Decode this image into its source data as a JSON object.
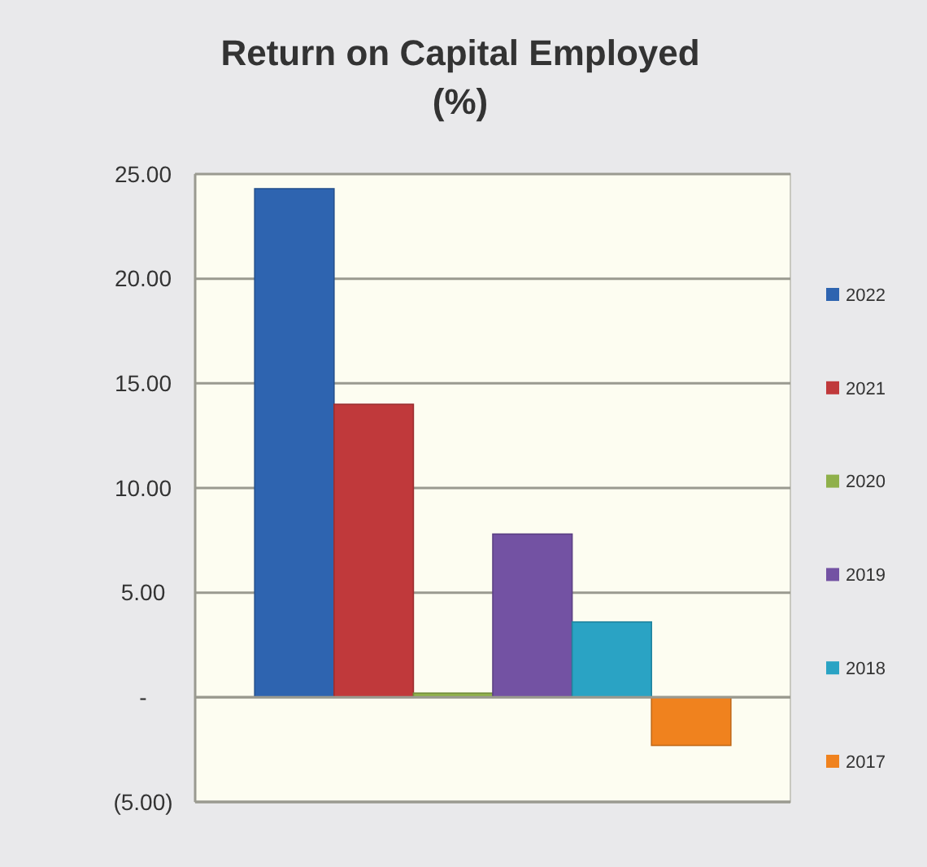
{
  "chart_data": {
    "type": "bar",
    "title": "Return on Capital Employed (%)",
    "categories": [
      null
    ],
    "series": [
      {
        "name": "2022",
        "color": "#2e64b0",
        "values": [
          24.3
        ]
      },
      {
        "name": "2021",
        "color": "#c0393b",
        "values": [
          14.0
        ]
      },
      {
        "name": "2020",
        "color": "#8fb04a",
        "values": [
          0.2
        ]
      },
      {
        "name": "2019",
        "color": "#7352a3",
        "values": [
          7.8
        ]
      },
      {
        "name": "2018",
        "color": "#2aa3c4",
        "values": [
          3.6
        ]
      },
      {
        "name": "2017",
        "color": "#f0821e",
        "values": [
          -2.3
        ]
      }
    ],
    "ylim": [
      -5,
      25
    ],
    "yticks": [
      {
        "value": -5,
        "label": "(5.00)"
      },
      {
        "value": 0,
        "label": "-"
      },
      {
        "value": 5,
        "label": "5.00"
      },
      {
        "value": 10,
        "label": "10.00"
      },
      {
        "value": 15,
        "label": "15.00"
      },
      {
        "value": 20,
        "label": "20.00"
      },
      {
        "value": 25,
        "label": "25.00"
      }
    ],
    "grid": "y",
    "legend": "right"
  }
}
